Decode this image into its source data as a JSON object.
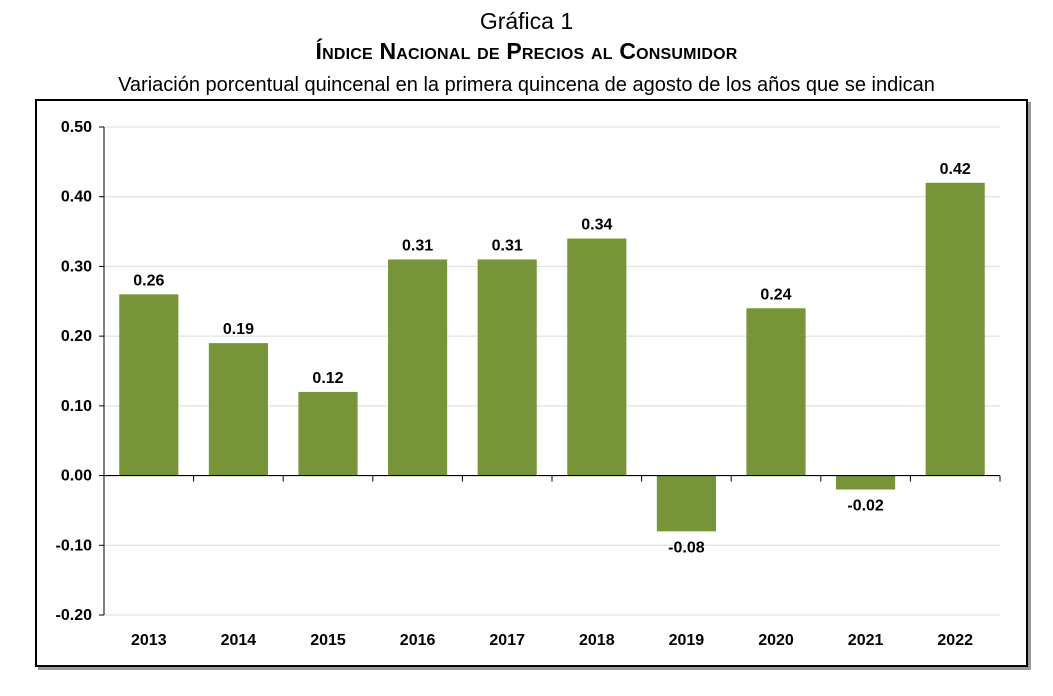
{
  "header": {
    "kicker": "Gráfica 1",
    "title": "Índice Nacional de Precios al Consumidor",
    "subtitle": "Variación porcentual quincenal en la primera quincena de agosto de los años que se indican"
  },
  "chart_data": {
    "type": "bar",
    "categories": [
      "2013",
      "2014",
      "2015",
      "2016",
      "2017",
      "2018",
      "2019",
      "2020",
      "2021",
      "2022"
    ],
    "values": [
      0.26,
      0.19,
      0.12,
      0.31,
      0.31,
      0.34,
      -0.08,
      0.24,
      -0.02,
      0.42
    ],
    "data_labels": [
      "0.26",
      "0.19",
      "0.12",
      "0.31",
      "0.31",
      "0.34",
      "-0.08",
      "0.24",
      "-0.02",
      "0.42"
    ],
    "ylim": [
      -0.2,
      0.5
    ],
    "yticks": [
      "0.50",
      "0.40",
      "0.30",
      "0.20",
      "0.10",
      "0.00",
      "-0.10",
      "-0.20"
    ],
    "ytick_values": [
      0.5,
      0.4,
      0.3,
      0.2,
      0.1,
      0.0,
      -0.1,
      -0.2
    ],
    "grid": true,
    "bar_color": "#779538",
    "xlabel": "",
    "ylabel": ""
  }
}
